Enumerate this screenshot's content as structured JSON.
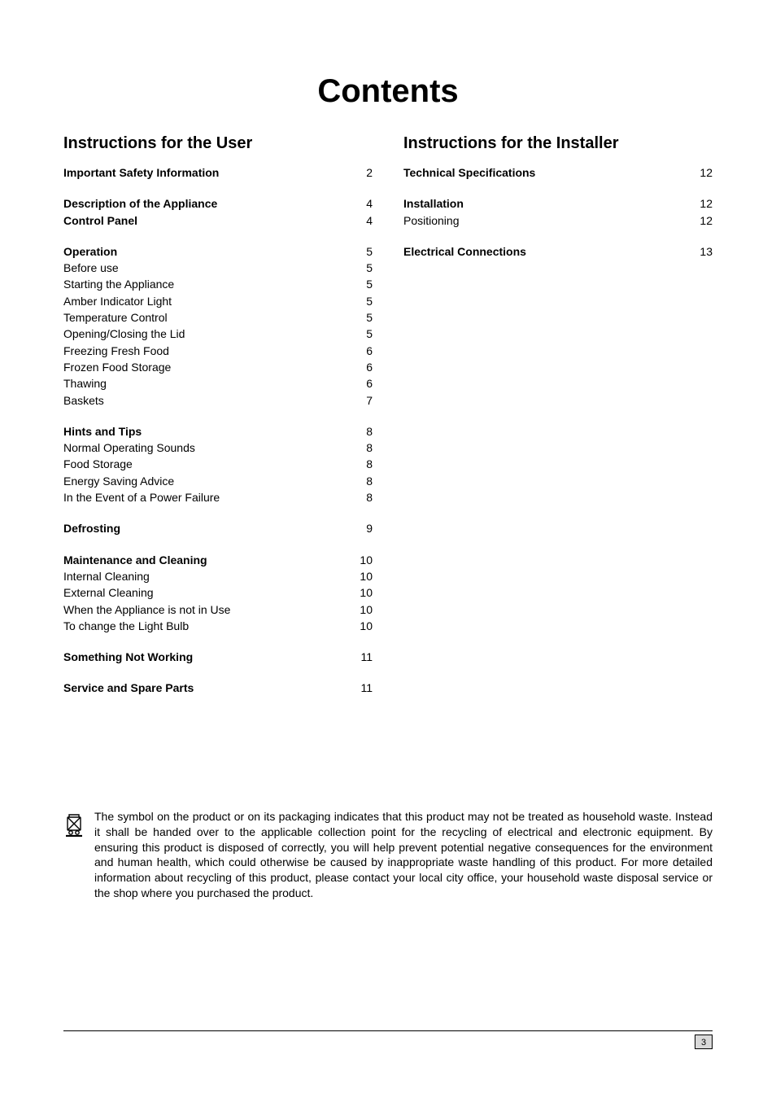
{
  "title": "Contents",
  "left": {
    "heading": "Instructions for the User",
    "groups": [
      [
        {
          "label": "Important Safety Information",
          "page": "2",
          "bold": true
        }
      ],
      [
        {
          "label": "Description of the Appliance",
          "page": "4",
          "bold": true
        },
        {
          "label": "Control Panel",
          "page": "4",
          "bold": true
        }
      ],
      [
        {
          "label": "Operation",
          "page": "5",
          "bold": true
        },
        {
          "label": "Before use",
          "page": "5"
        },
        {
          "label": "Starting the Appliance",
          "page": "5"
        },
        {
          "label": "Amber Indicator Light",
          "page": "5"
        },
        {
          "label": "Temperature Control",
          "page": "5"
        },
        {
          "label": "Opening/Closing the Lid",
          "page": "5"
        },
        {
          "label": "Freezing Fresh Food",
          "page": "6"
        },
        {
          "label": "Frozen Food Storage",
          "page": "6"
        },
        {
          "label": "Thawing",
          "page": "6"
        },
        {
          "label": "Baskets",
          "page": "7"
        }
      ],
      [
        {
          "label": "Hints and Tips",
          "page": "8",
          "bold": true
        },
        {
          "label": "Normal Operating Sounds",
          "page": "8"
        },
        {
          "label": "Food Storage",
          "page": "8"
        },
        {
          "label": "Energy Saving Advice",
          "page": "8"
        },
        {
          "label": "In the Event of a Power Failure",
          "page": "8"
        }
      ],
      [
        {
          "label": "Defrosting",
          "page": "9",
          "bold": true
        }
      ],
      [
        {
          "label": "Maintenance and Cleaning",
          "page": "10",
          "bold": true
        },
        {
          "label": "Internal Cleaning",
          "page": "10"
        },
        {
          "label": "External Cleaning",
          "page": "10"
        },
        {
          "label": "When the Appliance is not in Use",
          "page": "10"
        },
        {
          "label": "To change the Light Bulb",
          "page": "10"
        }
      ],
      [
        {
          "label": "Something Not Working",
          "page": "11",
          "bold": true
        }
      ],
      [
        {
          "label": "Service and Spare Parts",
          "page": "11",
          "bold": true
        }
      ]
    ]
  },
  "right": {
    "heading": "Instructions for the Installer",
    "groups": [
      [
        {
          "label": "Technical Specifications",
          "page": "12",
          "bold": true
        }
      ],
      [
        {
          "label": "Installation",
          "page": "12",
          "bold": true
        },
        {
          "label": "Positioning",
          "page": "12"
        }
      ],
      [
        {
          "label": "Electrical Connections",
          "page": "13",
          "bold": true
        }
      ]
    ]
  },
  "disclaimer": "The symbol on the product or on its packaging indicates that this product may not be treated as household waste. Instead it shall be handed over to the applicable collection point for the recycling of electrical and electronic equipment. By ensuring this product is disposed of correctly, you will help prevent potential negative consequences for the environment and human health, which could otherwise be caused by inappropriate waste handling of this product. For more detailed information about recycling of this product, please contact your local city office, your household waste disposal service or the shop where you purchased the product.",
  "page_number": "3",
  "colors": {
    "text": "#000000",
    "background": "#ffffff",
    "page_box_bg": "#d9d9d9",
    "rule": "#000000"
  },
  "fonts": {
    "title_size_pt": 30,
    "heading_size_pt": 15,
    "body_size_pt": 10.5
  }
}
